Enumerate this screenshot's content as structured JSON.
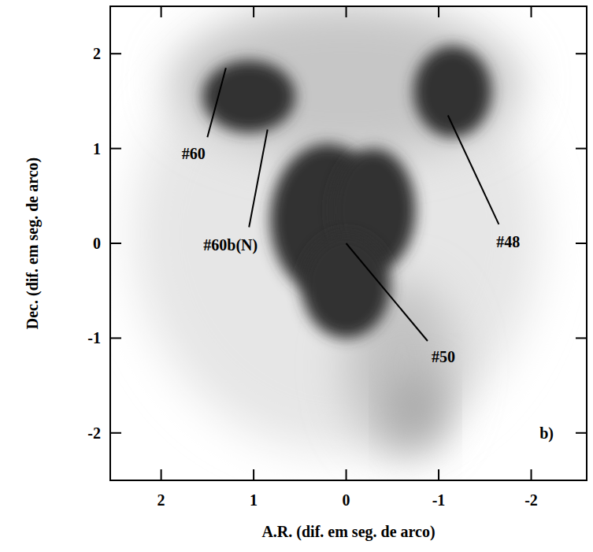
{
  "chart_data": {
    "type": "image",
    "x_label": "A.R. (dif. em seg. de arco)",
    "y_label": "Dec. (dif. em seg. de arco)",
    "panel_label": "b)",
    "xlim": [
      2.55,
      -2.6
    ],
    "ylim": [
      -2.5,
      2.5
    ],
    "xticks": [
      2,
      1,
      0,
      -1,
      -2
    ],
    "yticks": [
      -2,
      -1,
      0,
      1,
      2
    ],
    "blobs": [
      {
        "x": 0.1,
        "y": 0.1,
        "rx": 2.2,
        "ry": 2.3,
        "level": 0.12
      },
      {
        "x": 0.0,
        "y": 1.7,
        "rx": 1.9,
        "ry": 0.8,
        "level": 0.28
      },
      {
        "x": -0.6,
        "y": -1.3,
        "rx": 0.6,
        "ry": 0.9,
        "level": 0.3
      },
      {
        "x": -0.75,
        "y": -1.75,
        "rx": 0.25,
        "ry": 0.4,
        "level": 0.45
      },
      {
        "x": 0.2,
        "y": 0.25,
        "rx": 0.62,
        "ry": 0.8,
        "level": 1
      },
      {
        "x": -0.3,
        "y": 0.35,
        "rx": 0.45,
        "ry": 0.65,
        "level": 1
      },
      {
        "x": 0.0,
        "y": -0.45,
        "rx": 0.48,
        "ry": 0.55,
        "level": 1
      },
      {
        "x": 1.05,
        "y": 1.55,
        "rx": 0.5,
        "ry": 0.38,
        "level": 1
      },
      {
        "x": -1.15,
        "y": 1.6,
        "rx": 0.42,
        "ry": 0.48,
        "level": 1
      }
    ],
    "annotations": [
      {
        "text": "#60",
        "x": 1.65,
        "y": 0.95,
        "x1": 1.5,
        "y1": 1.12,
        "target_x": 1.3,
        "target_y": 1.85
      },
      {
        "text": "#60b(N)",
        "x": 1.25,
        "y": -0.02,
        "x1": 1.05,
        "y1": 0.17,
        "target_x": 0.85,
        "target_y": 1.2
      },
      {
        "text": "#48",
        "x": -1.75,
        "y": 0.02,
        "x1": -1.65,
        "y1": 0.2,
        "target_x": -1.1,
        "target_y": 1.35
      },
      {
        "text": "#50",
        "x": -1.05,
        "y": -1.2,
        "x1": -0.88,
        "y1": -1.03,
        "target_x": 0.0,
        "target_y": 0.0
      }
    ]
  }
}
